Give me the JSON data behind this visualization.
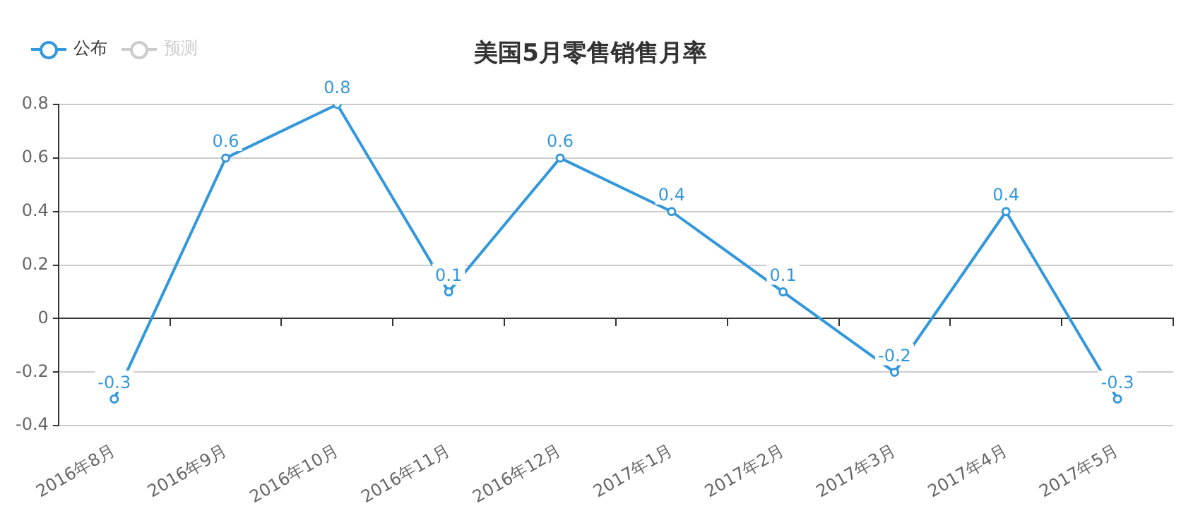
{
  "chart_data": {
    "type": "line",
    "title": "美国5月零售销售月率",
    "categories": [
      "2016年8月",
      "2016年9月",
      "2016年10月",
      "2016年11月",
      "2016年12月",
      "2017年1月",
      "2017年2月",
      "2017年3月",
      "2017年4月",
      "2017年5月"
    ],
    "series": [
      {
        "name": "公布",
        "color": "#3398db",
        "values": [
          -0.3,
          0.6,
          0.8,
          0.1,
          0.6,
          0.4,
          0.1,
          -0.2,
          0.4,
          -0.3
        ]
      },
      {
        "name": "预测",
        "color": "#cccccc",
        "values": [
          null,
          null,
          null,
          null,
          null,
          null,
          null,
          null,
          null,
          null
        ]
      }
    ],
    "ylim": [
      -0.4,
      0.8
    ],
    "yticks": [
      -0.4,
      -0.2,
      0,
      0.2,
      0.4,
      0.6,
      0.8
    ],
    "grid": "y",
    "legend": "top left",
    "marker": "circle",
    "line_style": "solid",
    "data_labels": true
  }
}
